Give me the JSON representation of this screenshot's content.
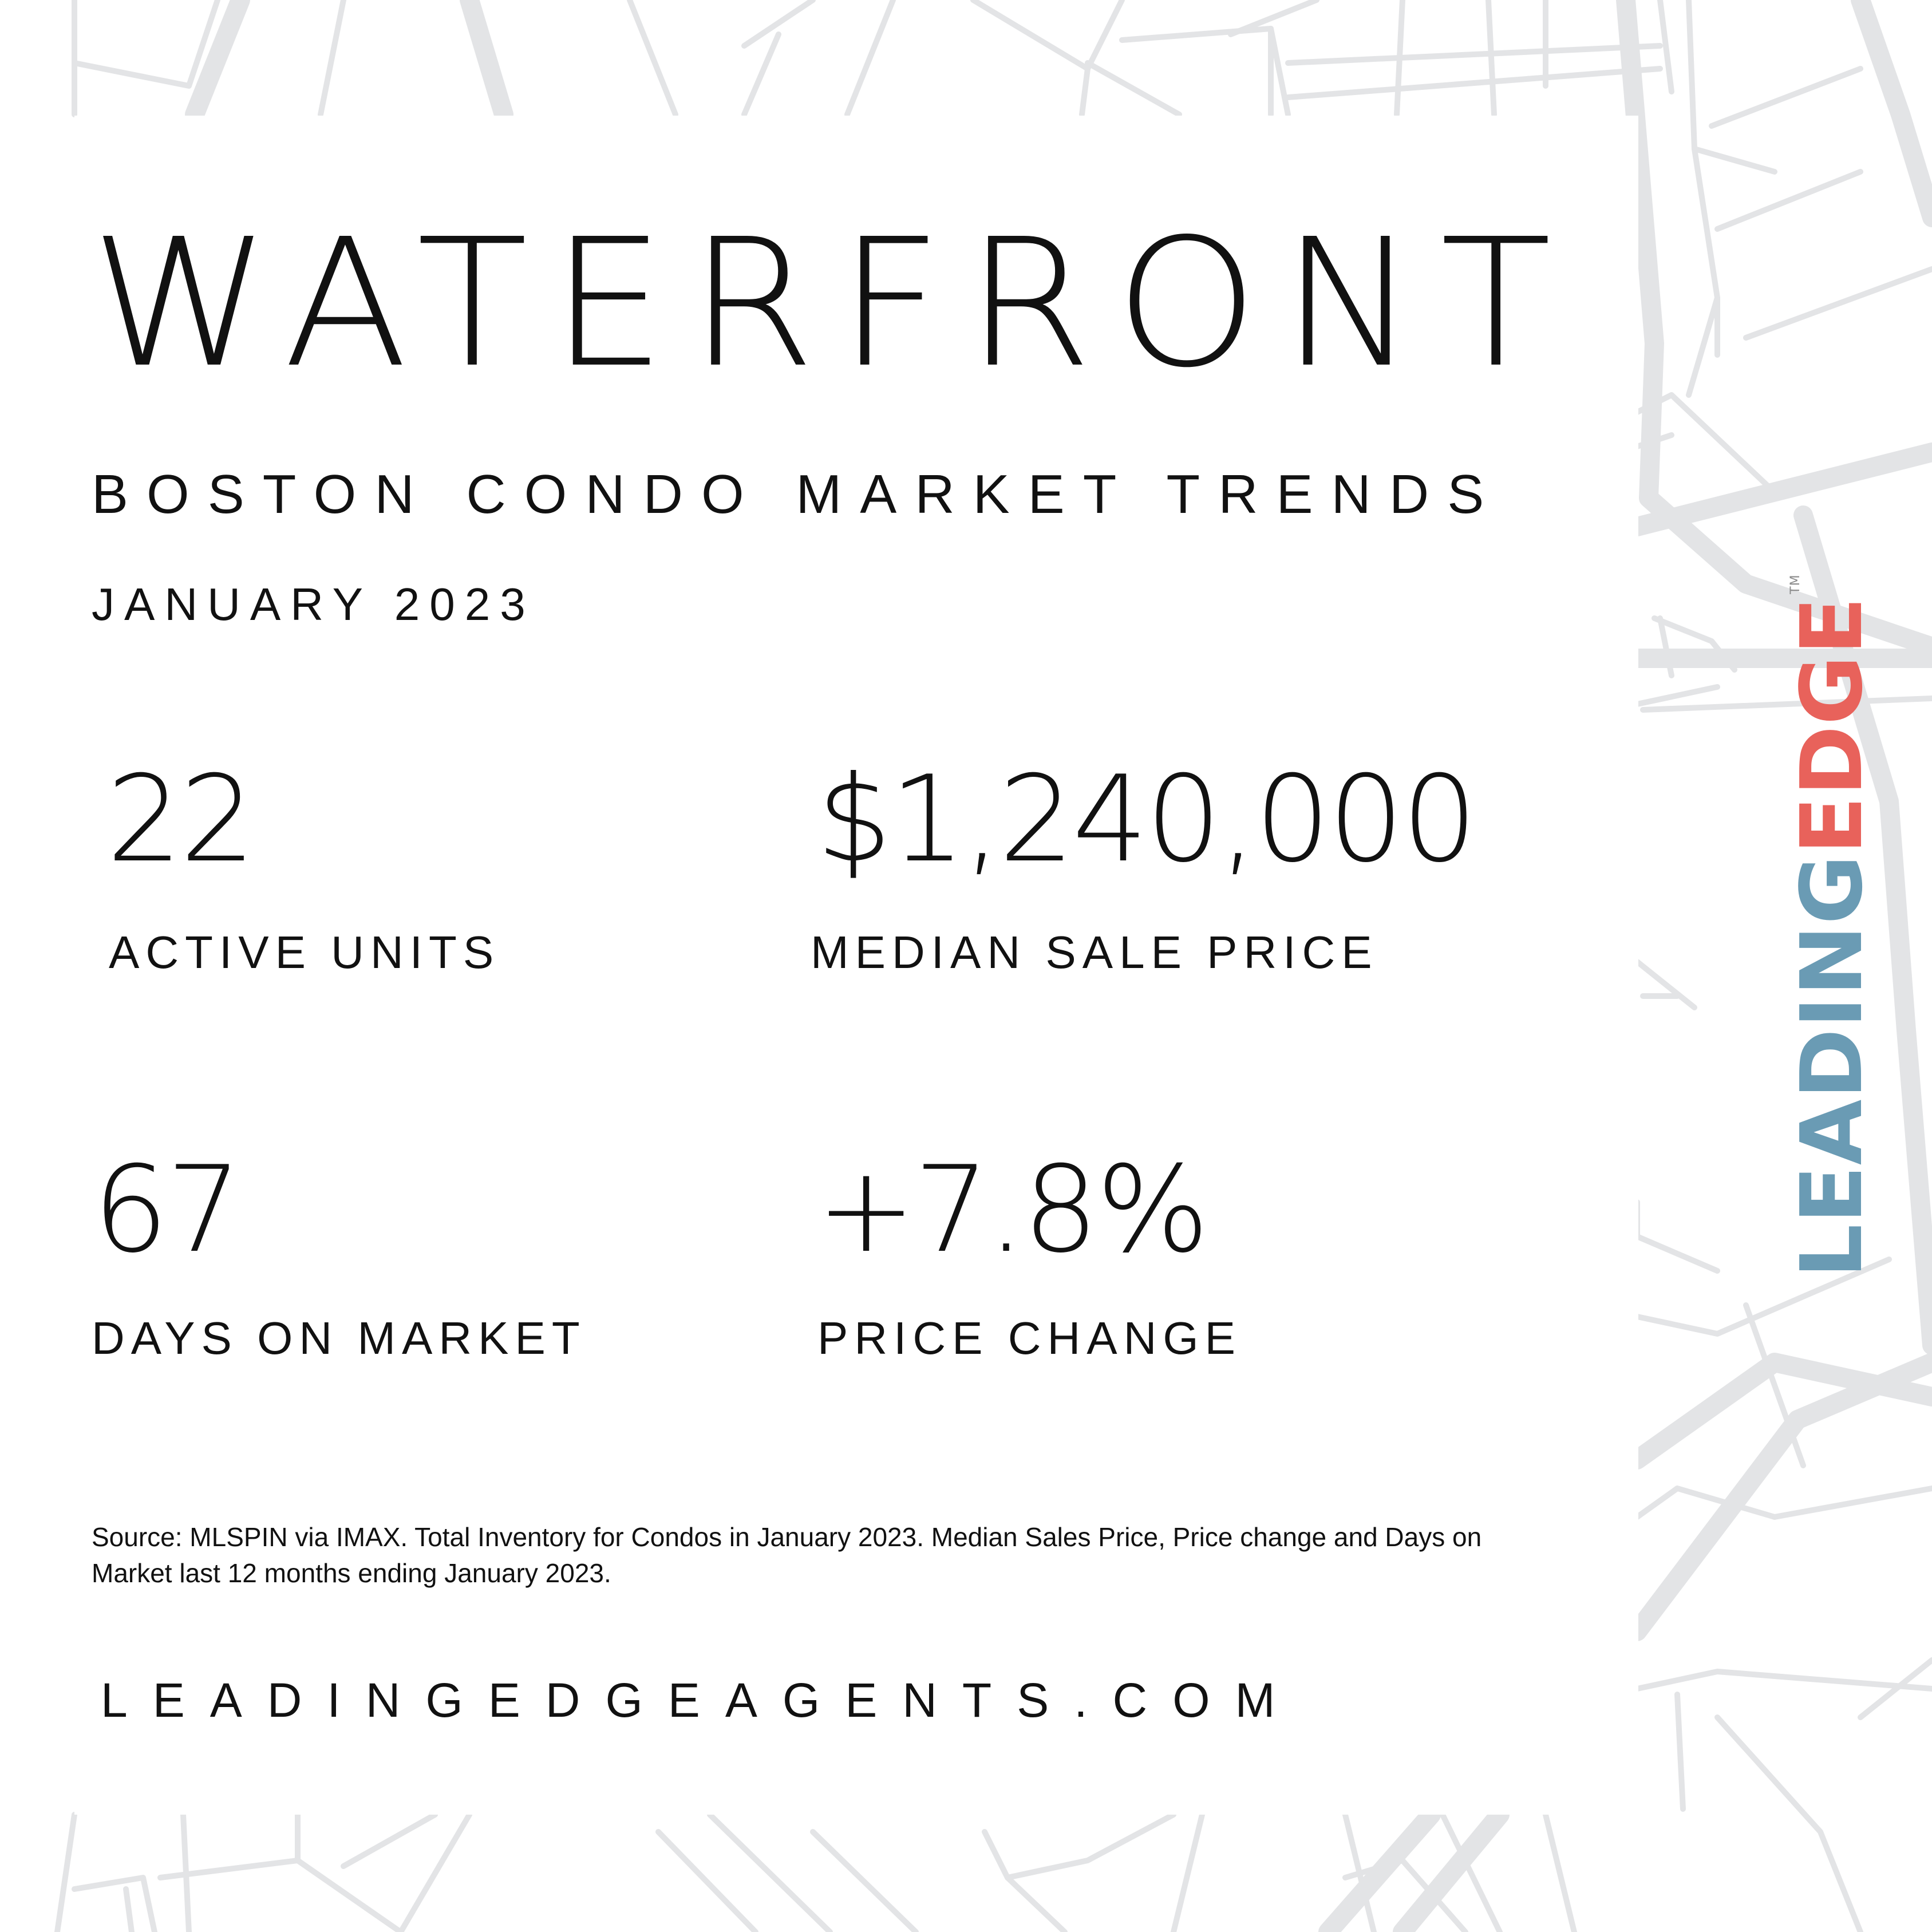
{
  "title": "WATERFRONT",
  "subtitle": "BOSTON CONDO MARKET TRENDS",
  "date": "JANUARY 2023",
  "stats": [
    {
      "value": "22",
      "label": "ACTIVE UNITS"
    },
    {
      "value": "$1,240,000",
      "label": "MEDIAN SALE PRICE"
    },
    {
      "value": "67",
      "label": "DAYS ON MARKET"
    },
    {
      "value": "+7.8%",
      "label": "PRICE CHANGE"
    }
  ],
  "source": "Source: MLSPIN via IMAX. Total Inventory for Condos in January 2023. Median Sales Price, Price change and Days on Market last 12 months ending January 2023.",
  "website": "LEADINGEDGEAGENTS.COM",
  "brand": {
    "part1": "LEADING",
    "part2": "EDGE",
    "tm": "TM"
  },
  "colors": {
    "brand_blue": "#6a9bb4",
    "brand_red": "#e8625b",
    "map_lines": "#e3e4e6",
    "text": "#111111"
  },
  "background": "street-map-pattern"
}
